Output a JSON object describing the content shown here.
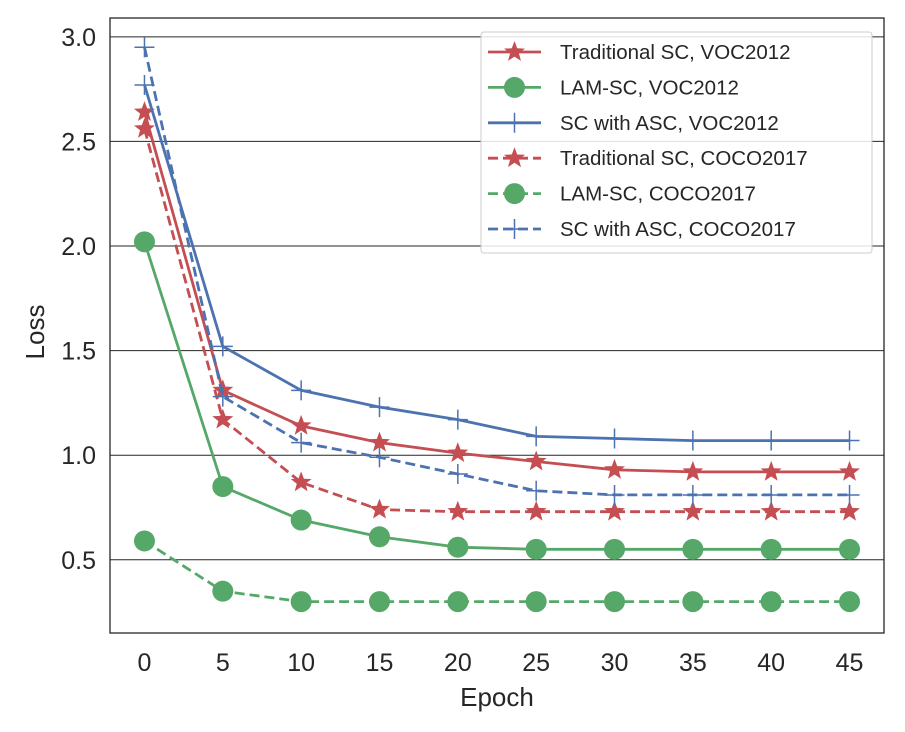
{
  "chart_data": {
    "type": "line",
    "title": "",
    "xlabel": "Epoch",
    "ylabel": "Loss",
    "x": [
      0,
      5,
      10,
      15,
      20,
      25,
      30,
      35,
      40,
      45
    ],
    "xticks": [
      "0",
      "5",
      "10",
      "15",
      "20",
      "25",
      "30",
      "35",
      "40",
      "45"
    ],
    "yticks": [
      "0.5",
      "1.0",
      "1.5",
      "2.0",
      "2.5",
      "3.0"
    ],
    "ytick_values": [
      0.5,
      1.0,
      1.5,
      2.0,
      2.5,
      3.0
    ],
    "xlim": [
      -2.2,
      47.2
    ],
    "ylim": [
      0.15,
      3.09
    ],
    "grid": "horizontal",
    "legend_position": "top-right",
    "series": [
      {
        "name": "Traditional SC, VOC2012",
        "color": "#c44e52",
        "dash": "solid",
        "marker": "star",
        "values": [
          2.64,
          1.31,
          1.14,
          1.06,
          1.01,
          0.97,
          0.93,
          0.92,
          0.92,
          0.92
        ]
      },
      {
        "name": "LAM-SC, VOC2012",
        "color": "#55a868",
        "dash": "solid",
        "marker": "circle",
        "values": [
          2.02,
          0.85,
          0.69,
          0.61,
          0.56,
          0.55,
          0.55,
          0.55,
          0.55,
          0.55
        ]
      },
      {
        "name": "SC with ASC, VOC2012",
        "color": "#4c72b0",
        "dash": "solid",
        "marker": "plus",
        "values": [
          2.77,
          1.52,
          1.31,
          1.23,
          1.17,
          1.09,
          1.08,
          1.07,
          1.07,
          1.07
        ]
      },
      {
        "name": "Traditional SC, COCO2017",
        "color": "#c44e52",
        "dash": "dashed",
        "marker": "star",
        "values": [
          2.56,
          1.17,
          0.87,
          0.74,
          0.73,
          0.73,
          0.73,
          0.73,
          0.73,
          0.73
        ]
      },
      {
        "name": "LAM-SC, COCO2017",
        "color": "#55a868",
        "dash": "dashed",
        "marker": "circle",
        "values": [
          0.59,
          0.35,
          0.3,
          0.3,
          0.3,
          0.3,
          0.3,
          0.3,
          0.3,
          0.3
        ]
      },
      {
        "name": "SC with ASC, COCO2017",
        "color": "#4c72b0",
        "dash": "dashed",
        "marker": "plus",
        "values": [
          2.95,
          1.28,
          1.06,
          0.99,
          0.91,
          0.83,
          0.81,
          0.81,
          0.81,
          0.81
        ]
      }
    ]
  }
}
